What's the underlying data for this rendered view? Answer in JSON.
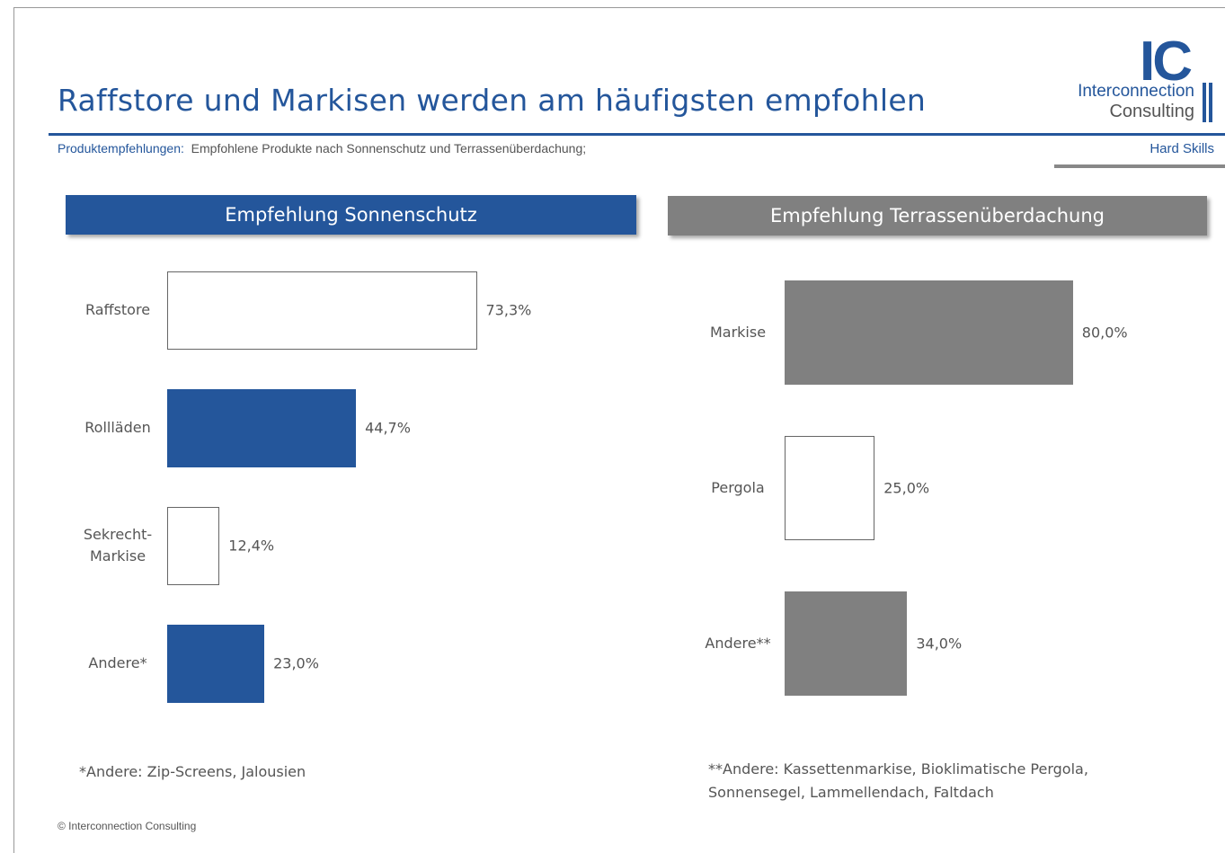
{
  "header": {
    "title": "Raffstore und Markisen werden am häufigsten empfohlen",
    "subtitle_label": "Produktempfehlungen:",
    "subtitle_text": "Empfohlene Produkte nach Sonnenschutz und Terrassenüberdachung;",
    "tag": "Hard Skills"
  },
  "logo": {
    "mark": "IC",
    "line1": "Interconnection",
    "line2": "Consulting"
  },
  "footer": "© Interconnection Consulting",
  "chart_data": [
    {
      "type": "bar",
      "orientation": "horizontal",
      "title": "Empfehlung Sonnenschutz",
      "title_color": "#24569b",
      "categories": [
        "Raffstore",
        "Rollläden",
        "Sekrecht-Markise",
        "Andere*"
      ],
      "values": [
        73.3,
        44.7,
        12.4,
        23.0
      ],
      "value_labels": [
        "73,3%",
        "44,7%",
        "12,4%",
        "23,0%"
      ],
      "colors": [
        "#ffffff",
        "#24569b",
        "#ffffff",
        "#24569b"
      ],
      "note": "*Andere: Zip-Screens, Jalousien"
    },
    {
      "type": "bar",
      "orientation": "horizontal",
      "title": "Empfehlung Terrassenüberdachung",
      "title_color": "#808080",
      "categories": [
        "Markise",
        "Pergola",
        "Andere**"
      ],
      "values": [
        80.0,
        25.0,
        34.0
      ],
      "value_labels": [
        "80,0%",
        "25,0%",
        "34,0%"
      ],
      "colors": [
        "#808080",
        "#ffffff",
        "#808080"
      ],
      "note": "**Andere: Kassettenmarkise, Bioklimatische Pergola, Sonnensegel, Lammellendach, Faltdach"
    }
  ]
}
